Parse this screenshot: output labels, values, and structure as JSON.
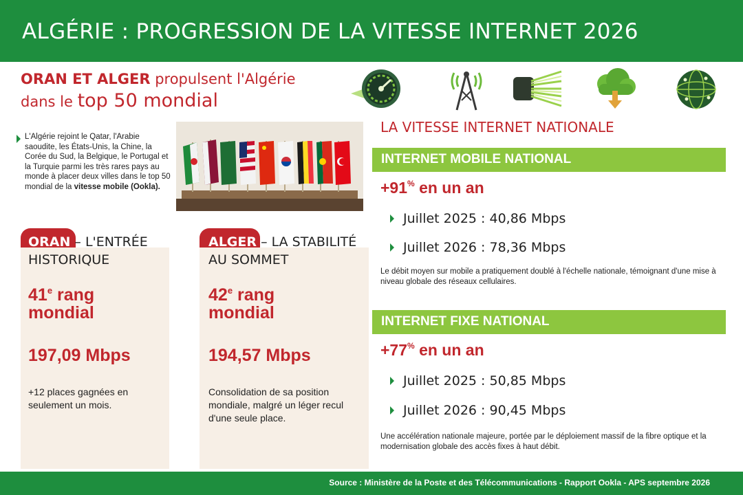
{
  "header": {
    "title": "ALGÉRIE : PROGRESSION DE LA VITESSE INTERNET 2026"
  },
  "headline": {
    "strong": "ORAN ET ALGER",
    "rest": " propulsent l'Algérie",
    "line2_small": "dans le ",
    "line2_big": "top 50 mondial"
  },
  "icons": [
    "speedometer-icon",
    "antenna-tower-icon",
    "fiber-optic-icon",
    "cloud-download-icon",
    "globe-network-icon"
  ],
  "intro": {
    "text": "L'Algérie rejoint le Qatar, l'Arabie saoudite, les États-Unis, la Chine, la Corée du Sud, la Belgique, le Portugal et la Turquie parmi les très rares pays au monde à placer deux villes dans le top 50 mondial de la ",
    "bold": "vitesse mobile (Ookla)."
  },
  "oran": {
    "name": "ORAN",
    "title_rest": " – L'ENTRÉE",
    "title_line2": "HISTORIQUE",
    "rank_num": "41",
    "rank_sup": "e",
    "rank_word": " rang",
    "rank_line2": "mondial",
    "speed": "197,09 Mbps",
    "note": "+12 places gagnées en seulement un mois."
  },
  "alger": {
    "name": "ALGER",
    "title_rest": " – LA STABILITÉ",
    "title_line2": "AU SOMMET",
    "rank_num": "42",
    "rank_sup": "e",
    "rank_word": " rang",
    "rank_line2": "mondial",
    "speed": "194,57 Mbps",
    "note": "Consolidation de sa position mondiale, malgré un léger recul d'une seule place."
  },
  "national": {
    "title": "LA VITESSE INTERNET NATIONALE",
    "mobile": {
      "label": "INTERNET MOBILE NATIONAL",
      "growth_num": "+91",
      "growth_sup": "%",
      "growth_rest": " en un an",
      "b1": "Juillet 2025 : 40,86 Mbps",
      "b2": "Juillet 2026 : 78,36 Mbps",
      "desc": "Le débit moyen sur mobile a pratiquement doublé à l'échelle nationale, témoignant d'une mise à niveau globale des réseaux cellulaires."
    },
    "fixe": {
      "label": "INTERNET FIXE NATIONAL",
      "growth_num": "+77",
      "growth_sup": "%",
      "growth_rest": " en un an",
      "b1": "Juillet 2025 : 50,85 Mbps",
      "b2": "Juillet 2026 : 90,45 Mbps",
      "desc": "Une accélération nationale majeure, portée par le déploiement massif de la fibre optique et la modernisation globale des accès fixes à haut débit."
    }
  },
  "footer": {
    "source": "Source : Ministère de la Poste et des Télécommunications - Rapport Ookla - APS septembre 2026"
  },
  "colors": {
    "green": "#1e8e3e",
    "lime": "#8dc63f",
    "red": "#c1272d",
    "cream": "#f7efe6"
  }
}
